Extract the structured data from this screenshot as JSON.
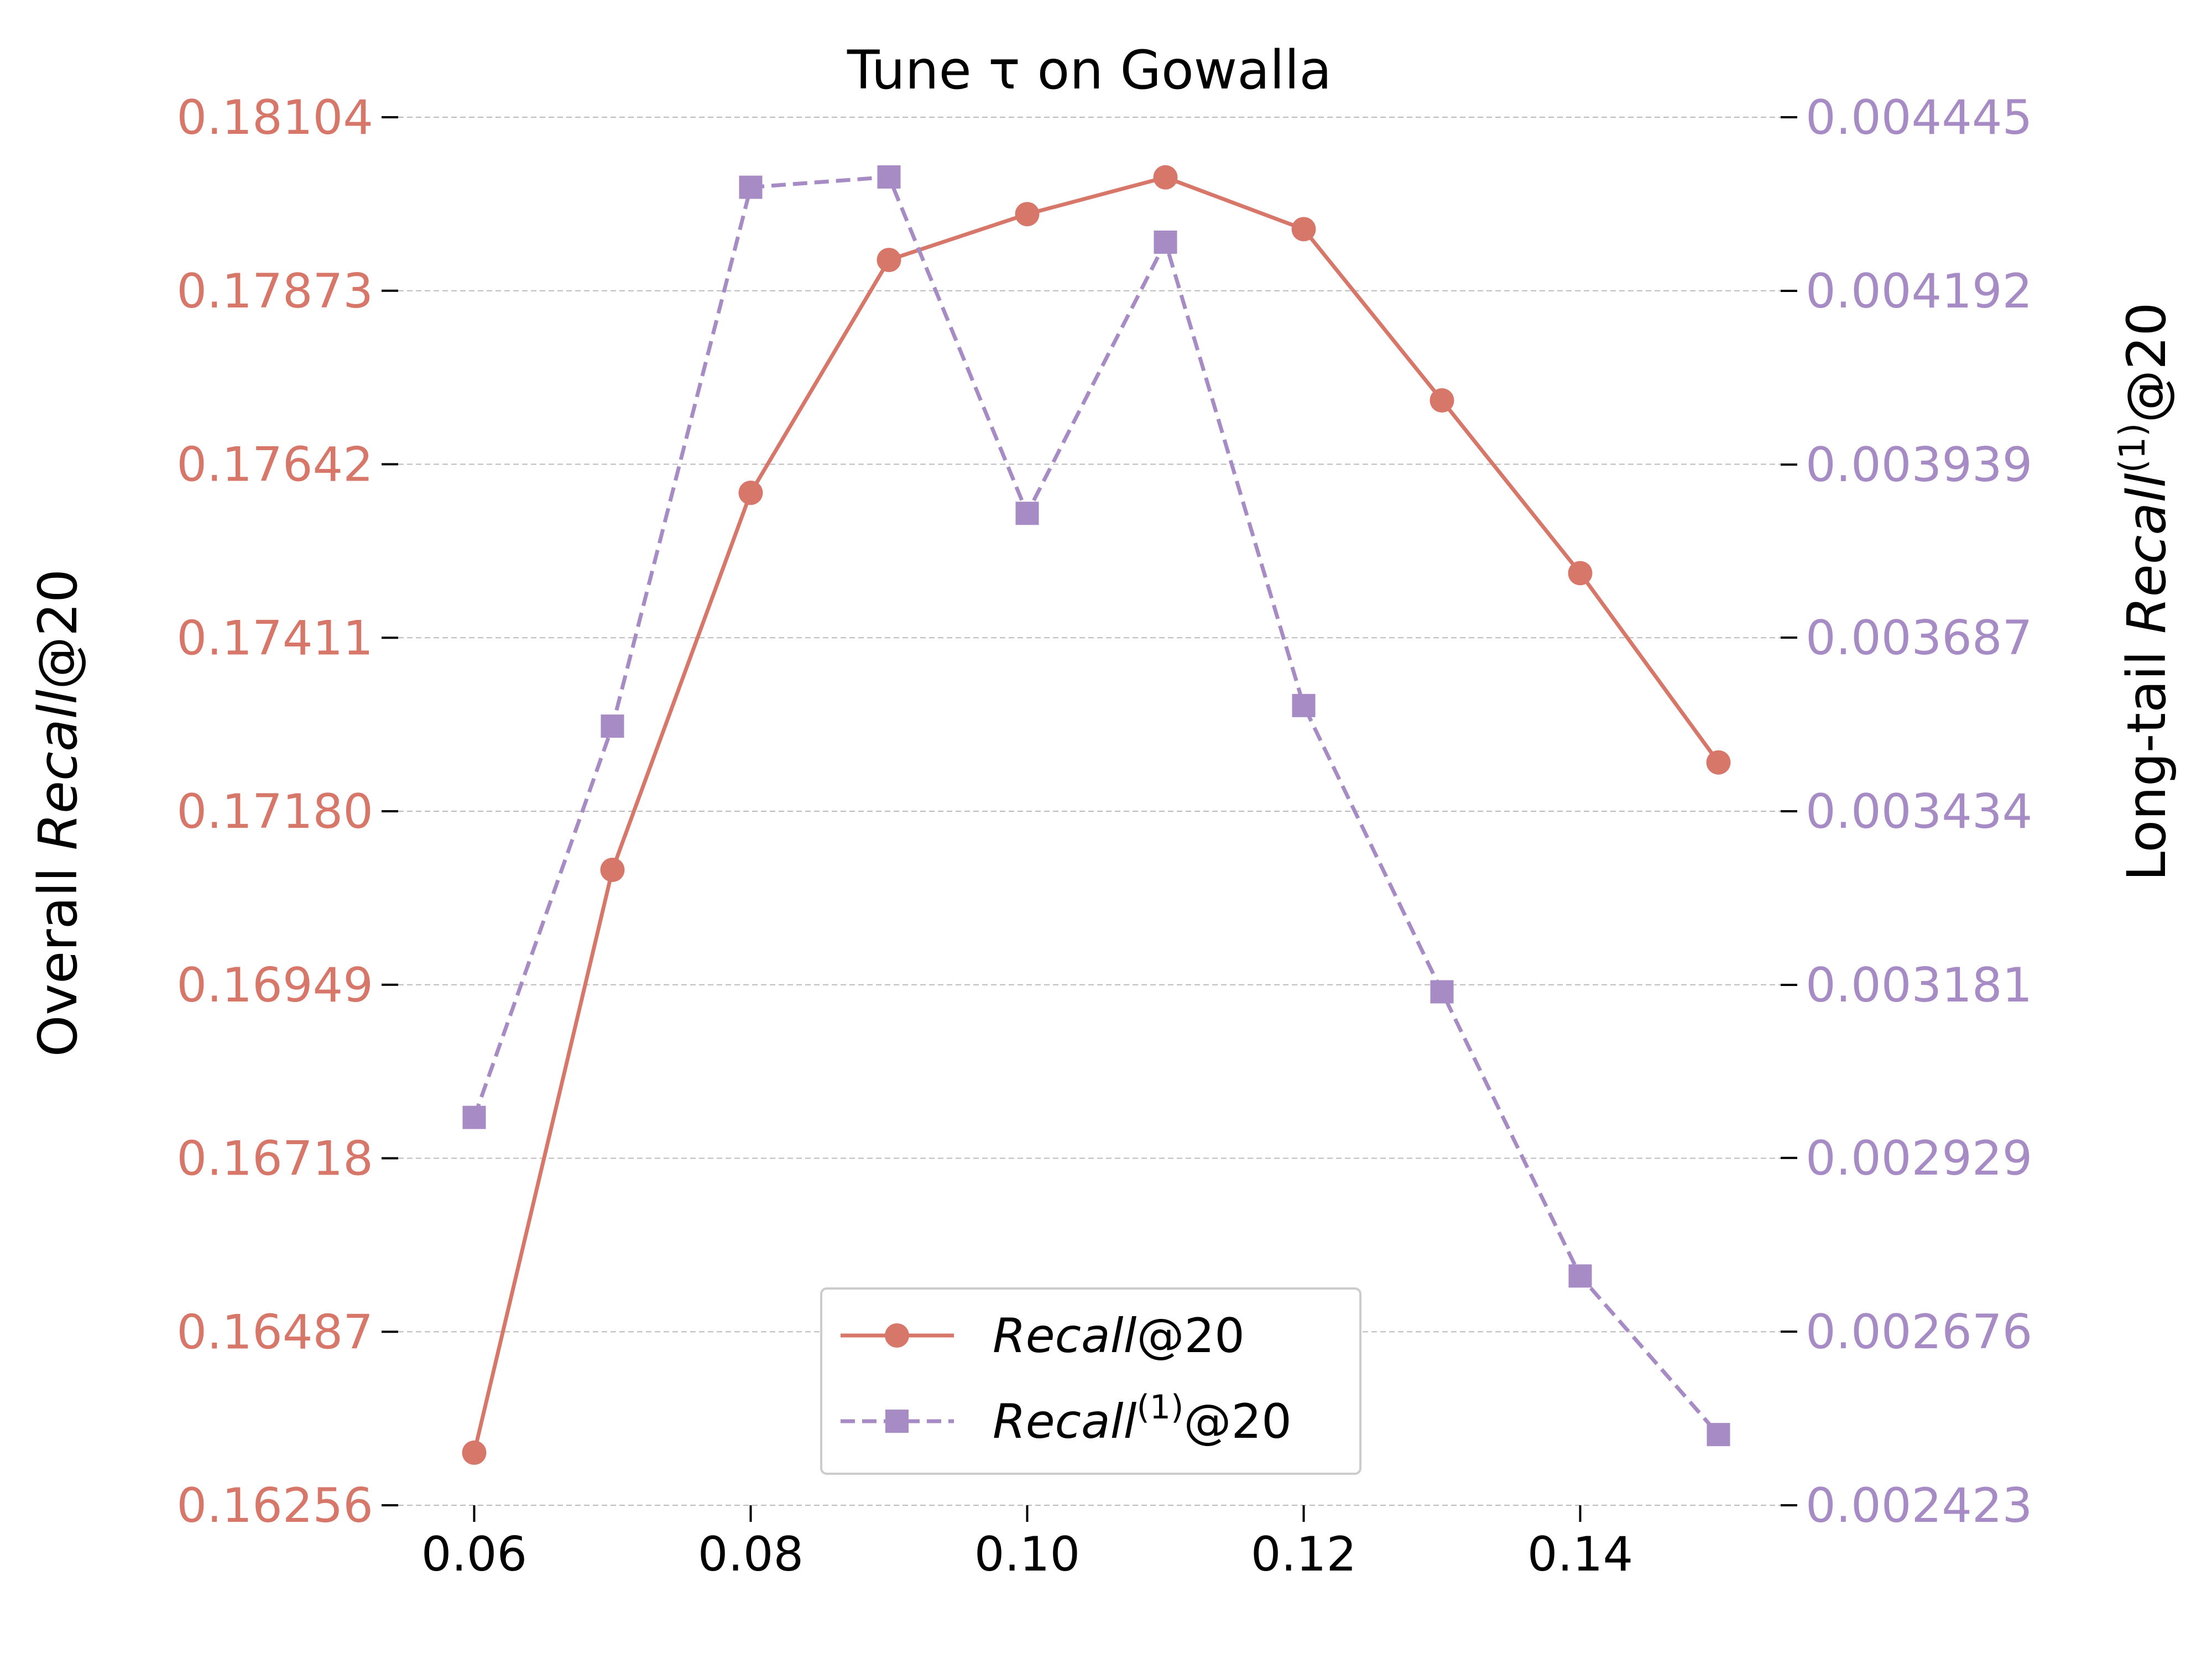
{
  "chart_data": {
    "type": "line",
    "title": "Tune τ on Gowalla",
    "x": [
      0.06,
      0.07,
      0.08,
      0.09,
      0.1,
      0.11,
      0.12,
      0.13,
      0.14,
      0.15
    ],
    "x_ticks": [
      "0.06",
      "0.08",
      "0.10",
      "0.12",
      "0.14"
    ],
    "xlim": [
      0.0545,
      0.1545
    ],
    "ylabel_left": {
      "prefix": "Overall  ",
      "italic": "Recall",
      "suffix": "@20"
    },
    "ylabel_right": {
      "prefix": "Long-tail  ",
      "italic": "Recall",
      "sup": "(1)",
      "suffix": "@20"
    },
    "left_axis": {
      "ylim": [
        0.16256,
        0.18104
      ],
      "ticks": [
        "0.16256",
        "0.16487",
        "0.16718",
        "0.16949",
        "0.17180",
        "0.17411",
        "0.17642",
        "0.17873",
        "0.18104"
      ],
      "color": "#D6776A"
    },
    "right_axis": {
      "ylim": [
        0.002423,
        0.004445
      ],
      "ticks": [
        "0.002423",
        "0.002676",
        "0.002929",
        "0.003181",
        "0.003434",
        "0.003687",
        "0.003939",
        "0.004192",
        "0.004445"
      ],
      "color": "#A68BC4"
    },
    "series": [
      {
        "name": "Recall@20",
        "name_parts": {
          "italic": "Recall",
          "sup": "",
          "suffix": "@20"
        },
        "axis": "left",
        "style": "solid",
        "marker": "circle",
        "color": "#D6776A",
        "values": [
          0.16326,
          0.17102,
          0.17604,
          0.17914,
          0.17975,
          0.18024,
          0.17955,
          0.17727,
          0.17497,
          0.17245
        ]
      },
      {
        "name": "Recall(1)@20",
        "name_parts": {
          "italic": "Recall",
          "sup": "(1)",
          "suffix": "@20"
        },
        "axis": "right",
        "style": "dashed",
        "marker": "square",
        "color": "#A68BC4",
        "values": [
          0.002988,
          0.003558,
          0.004343,
          0.004358,
          0.003868,
          0.004263,
          0.003588,
          0.003171,
          0.002757,
          0.002526
        ]
      }
    ],
    "grid": "horizontal dashed",
    "legend_position": "lower-center"
  }
}
